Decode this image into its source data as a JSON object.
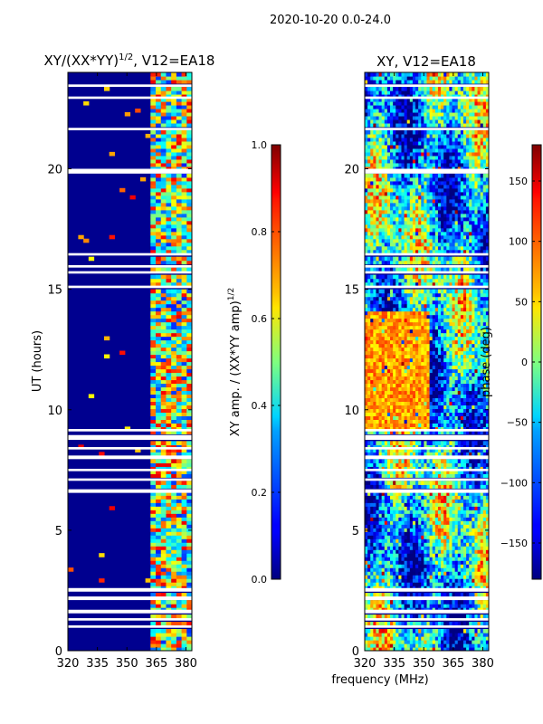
{
  "figure": {
    "suptitle": "2020-10-20 0.0-24.0",
    "xlabel_shared": "frequency (MHz)"
  },
  "chart_data": [
    {
      "type": "heatmap",
      "title_main": "XY/(XX*YY)",
      "title_sup": "1/2",
      "title_tail": ", V12=EA18",
      "xlabel": "",
      "ylabel": "UT (hours)",
      "xlim": [
        320,
        383
      ],
      "ylim": [
        0,
        24
      ],
      "xticks": [
        320,
        335,
        350,
        365,
        380
      ],
      "yticks": [
        0,
        5,
        10,
        15,
        20
      ],
      "colorbar": {
        "label_main": "XY amp. / (XX*YY amp)",
        "label_sup": "1/2",
        "range": [
          0.0,
          1.0
        ],
        "ticks": [
          "0.0",
          "0.2",
          "0.4",
          "0.6",
          "0.8",
          "1.0"
        ],
        "tick_values": [
          0.0,
          0.2,
          0.4,
          0.6,
          0.8,
          1.0
        ],
        "colormap": "jet"
      },
      "description_values": {
        "band_low_mhz_start": 320,
        "band_low_mhz_end": 361,
        "band_low_value": 0.02,
        "band_high_mhz_start": 361,
        "band_high_mhz_end": 383,
        "band_high_value_range": [
          0.3,
          0.9
        ]
      }
    },
    {
      "type": "heatmap",
      "title": "XY, V12=EA18",
      "xlabel": "",
      "ylabel": "",
      "xlim": [
        320,
        383
      ],
      "ylim": [
        0,
        24
      ],
      "xticks": [
        320,
        335,
        350,
        365,
        380
      ],
      "yticks": [
        0,
        5,
        10,
        15,
        20
      ],
      "colorbar": {
        "label": "phase (deg)",
        "range": [
          -180,
          180
        ],
        "ticks": [
          "−150",
          "−100",
          "−50",
          "0",
          "50",
          "100",
          "150"
        ],
        "tick_values": [
          -150,
          -100,
          -50,
          0,
          50,
          100,
          150
        ],
        "colormap": "jet"
      }
    }
  ],
  "flagged_hours": [
    [
      0.95,
      1.05
    ],
    [
      1.25,
      1.35
    ],
    [
      1.55,
      1.7
    ],
    [
      2.1,
      2.25
    ],
    [
      2.45,
      2.6
    ],
    [
      6.55,
      6.7
    ],
    [
      7.05,
      7.15
    ],
    [
      7.45,
      7.55
    ],
    [
      7.95,
      8.1
    ],
    [
      8.35,
      8.45
    ],
    [
      8.75,
      8.95
    ],
    [
      9.1,
      9.2
    ],
    [
      19.8,
      20.0
    ],
    [
      15.05,
      15.15
    ],
    [
      15.65,
      15.75
    ],
    [
      15.9,
      16.0
    ],
    [
      16.4,
      16.5
    ],
    [
      21.6,
      21.7
    ],
    [
      22.9,
      23.0
    ],
    [
      23.4,
      23.5
    ]
  ]
}
